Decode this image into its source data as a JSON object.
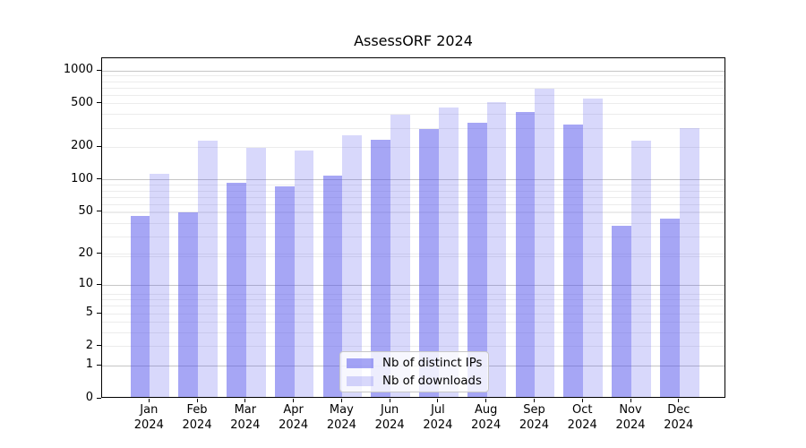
{
  "chart_data": {
    "type": "bar",
    "title": "AssessORF 2024",
    "categories": [
      "Jan",
      "Feb",
      "Mar",
      "Apr",
      "May",
      "Jun",
      "Jul",
      "Aug",
      "Sep",
      "Oct",
      "Nov",
      "Dec"
    ],
    "x_tick_year": "2024",
    "series": [
      {
        "name": "Nb of distinct IPs",
        "color": "rgba(78,78,236,0.50)",
        "values": [
          44,
          48,
          90,
          84,
          106,
          226,
          281,
          323,
          405,
          311,
          36,
          42
        ]
      },
      {
        "name": "Nb of downloads",
        "color": "rgba(78,78,236,0.22)",
        "values": [
          109,
          220,
          190,
          180,
          248,
          380,
          448,
          502,
          665,
          541,
          221,
          288
        ]
      }
    ],
    "y_ticks": [
      0,
      1,
      2,
      5,
      10,
      20,
      50,
      100,
      200,
      500,
      1000
    ],
    "y_scale": "log10(1+y)",
    "ylim": [
      0,
      1310
    ],
    "xlabel": "",
    "ylabel": "",
    "grid": "both",
    "legend_position": "lower center inside"
  },
  "colors": {
    "grid_major": "#c6c6c6",
    "grid_minor": "#ececec",
    "axis": "#000000",
    "background": "#ffffff"
  }
}
